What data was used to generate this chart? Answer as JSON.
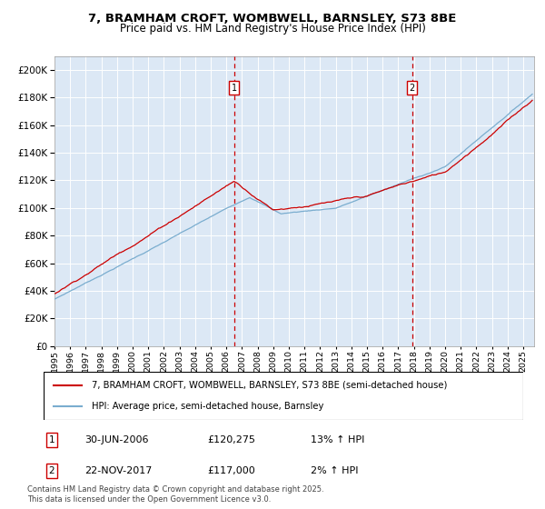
{
  "title_line1": "7, BRAMHAM CROFT, WOMBWELL, BARNSLEY, S73 8BE",
  "title_line2": "Price paid vs. HM Land Registry's House Price Index (HPI)",
  "bg_color": "#dce8f5",
  "red_color": "#cc0000",
  "blue_color": "#7aadcf",
  "ylim": [
    0,
    210000
  ],
  "yticks": [
    0,
    20000,
    40000,
    60000,
    80000,
    100000,
    120000,
    140000,
    160000,
    180000,
    200000
  ],
  "sale1_date": "30-JUN-2006",
  "sale1_price": "£120,275",
  "sale1_hpi": "13% ↑ HPI",
  "sale1_x": 2006.49,
  "sale2_date": "22-NOV-2017",
  "sale2_price": "£117,000",
  "sale2_hpi": "2% ↑ HPI",
  "sale2_x": 2017.89,
  "legend_label_red": "7, BRAMHAM CROFT, WOMBWELL, BARNSLEY, S73 8BE (semi-detached house)",
  "legend_label_blue": "HPI: Average price, semi-detached house, Barnsley",
  "footnote1": "Contains HM Land Registry data © Crown copyright and database right 2025.",
  "footnote2": "This data is licensed under the Open Government Licence v3.0."
}
